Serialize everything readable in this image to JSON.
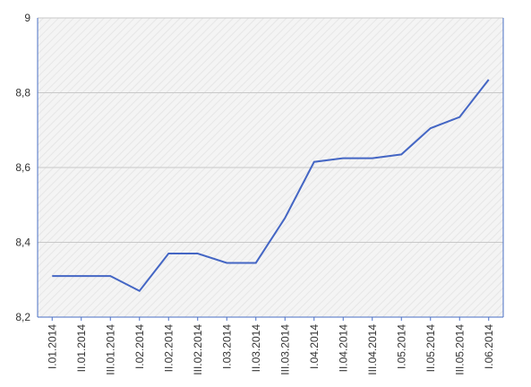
{
  "chart_data": {
    "type": "line",
    "categories": [
      "I.01.2014",
      "II.01.2014",
      "III.01.2014",
      "I.02.2014",
      "II.02.2014",
      "III.02.2014",
      "I.03.2014",
      "II.03.2014",
      "III.03.2014",
      "I.04.2014",
      "II.04.2014",
      "III.04.2014",
      "I.05.2014",
      "II.05.2014",
      "III.05.2014",
      "I.06.2014"
    ],
    "values": [
      8.31,
      8.31,
      8.31,
      8.27,
      8.37,
      8.37,
      8.345,
      8.345,
      8.465,
      8.615,
      8.625,
      8.625,
      8.635,
      8.705,
      8.735,
      8.835
    ],
    "color": "#4466c4",
    "ylim": [
      8.2,
      9
    ],
    "yticks": [
      {
        "value": 8.2,
        "label": "8,2"
      },
      {
        "value": 8.4,
        "label": "8,4"
      },
      {
        "value": 8.6,
        "label": "8,6"
      },
      {
        "value": 8.8,
        "label": "8,8"
      },
      9
    ],
    "grid": true
  }
}
